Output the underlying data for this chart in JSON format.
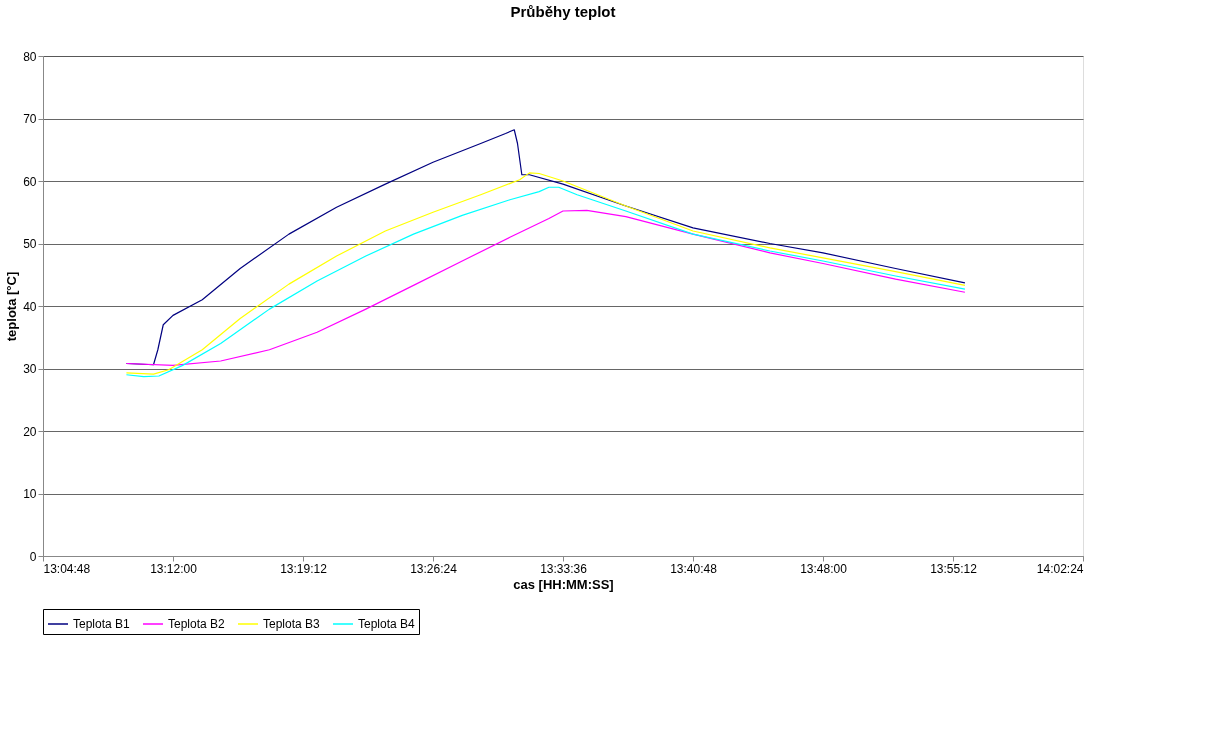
{
  "chart_data": {
    "type": "line",
    "title": "Průběhy teplot",
    "xlabel": "cas [HH:MM:SS]",
    "ylabel": "teplota [°C]",
    "xlim": [
      13.08,
      14.04
    ],
    "xticks": [
      {
        "value": 13.08,
        "label": "13:04:48"
      },
      {
        "value": 13.2,
        "label": "13:12:00"
      },
      {
        "value": 13.32,
        "label": "13:19:12"
      },
      {
        "value": 13.44,
        "label": "13:26:24"
      },
      {
        "value": 13.56,
        "label": "13:33:36"
      },
      {
        "value": 13.68,
        "label": "13:40:48"
      },
      {
        "value": 13.8,
        "label": "13:48:00"
      },
      {
        "value": 13.92,
        "label": "13:55:12"
      },
      {
        "value": 14.04,
        "label": "14:02:24"
      }
    ],
    "ylim": [
      0,
      80
    ],
    "yticks": [
      0,
      10,
      20,
      30,
      40,
      50,
      60,
      70,
      80
    ],
    "grid": "y",
    "legend": "bottom",
    "marker": "none",
    "line_style": "solid",
    "series": [
      {
        "name": "Teplota B1",
        "color": "#000080",
        "x": [
          13.157,
          13.182,
          13.186,
          13.191,
          13.2,
          13.227,
          13.262,
          13.307,
          13.351,
          13.396,
          13.44,
          13.484,
          13.507,
          13.515,
          13.518,
          13.522,
          13.529,
          13.56,
          13.618,
          13.68,
          13.751,
          13.8,
          13.867,
          13.931
        ],
        "values": [
          30.8,
          30.6,
          33,
          37,
          38.5,
          41,
          46,
          51.5,
          55.8,
          59.5,
          63,
          66,
          67.6,
          68.2,
          66,
          61,
          61,
          59.5,
          56,
          52.5,
          50,
          48.5,
          46,
          43.7
        ]
      },
      {
        "name": "Teplota B2",
        "color": "#ff00ff",
        "x": [
          13.157,
          13.2,
          13.244,
          13.289,
          13.333,
          13.378,
          13.422,
          13.467,
          13.511,
          13.547,
          13.56,
          13.582,
          13.618,
          13.68,
          13.751,
          13.8,
          13.867,
          13.931
        ],
        "values": [
          30.8,
          30.5,
          31.2,
          33,
          35.8,
          39.5,
          43.3,
          47.2,
          51,
          54,
          55.2,
          55.3,
          54.3,
          51.5,
          48.5,
          46.8,
          44.3,
          42.2
        ]
      },
      {
        "name": "Teplota B3",
        "color": "#ffff00",
        "x": [
          13.157,
          13.182,
          13.196,
          13.227,
          13.262,
          13.307,
          13.351,
          13.396,
          13.44,
          13.484,
          13.52,
          13.529,
          13.538,
          13.56,
          13.618,
          13.68,
          13.751,
          13.8,
          13.867,
          13.931
        ],
        "values": [
          29.3,
          29.1,
          29.8,
          33,
          38,
          43.5,
          48,
          52,
          55,
          57.8,
          60.2,
          61.3,
          61.2,
          60,
          56,
          52,
          49.3,
          47.7,
          45.5,
          43.3
        ]
      },
      {
        "name": "Teplota B4",
        "color": "#00ffff",
        "x": [
          13.157,
          13.173,
          13.187,
          13.209,
          13.244,
          13.289,
          13.333,
          13.378,
          13.422,
          13.467,
          13.511,
          13.538,
          13.547,
          13.556,
          13.573,
          13.618,
          13.68,
          13.751,
          13.8,
          13.867,
          13.931
        ],
        "values": [
          29,
          28.7,
          28.8,
          30.5,
          34,
          39.5,
          44,
          48,
          51.5,
          54.5,
          57,
          58.3,
          59,
          59,
          57.8,
          55.2,
          51.5,
          48.8,
          47.2,
          44.8,
          42.7
        ]
      }
    ]
  }
}
